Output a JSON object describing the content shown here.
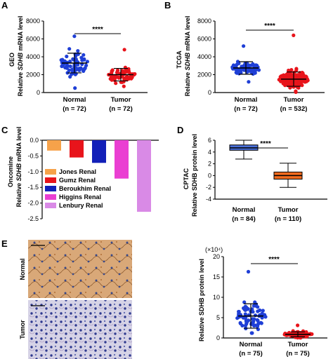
{
  "panels": {
    "a": {
      "letter": "A",
      "dataset": "GEO",
      "ylabel_prefix": "Relative ",
      "ylabel_gene": "SDHB",
      "ylabel_suffix": " mRNA level",
      "groups": [
        {
          "name": "Normal",
          "n": "(n = 72)"
        },
        {
          "name": "Tumor",
          "n": "(n = 72)"
        }
      ],
      "significance": "****"
    },
    "b": {
      "letter": "B",
      "dataset": "TCGA",
      "ylabel_prefix": "Relative ",
      "ylabel_gene": "SDHB",
      "ylabel_suffix": " mRNA level",
      "groups": [
        {
          "name": "Normal",
          "n": "(n = 72)"
        },
        {
          "name": "Tumor",
          "n": "(n = 532)"
        }
      ],
      "significance": "****"
    },
    "c": {
      "letter": "C",
      "dataset": "Oncomine",
      "ylabel_prefix": "Relative ",
      "ylabel_gene": "SDHB",
      "ylabel_suffix": " mRNA level"
    },
    "d": {
      "letter": "D",
      "dataset": "CPTAC",
      "ylabel": "Relative SDHB protein level",
      "groups": [
        {
          "name": "Normal",
          "n": "(n = 84)"
        },
        {
          "name": "Tumor",
          "n": "(n = 110)"
        }
      ],
      "significance": "****"
    },
    "e": {
      "letter": "E",
      "row_labels": [
        "Normal",
        "Tumor"
      ],
      "ylabel": "Relative SDHB protein level",
      "multiplier": "(×10⁴)",
      "groups": [
        {
          "name": "Normal",
          "n": "(n = 75)"
        },
        {
          "name": "Tumor",
          "n": "(n = 75)"
        }
      ],
      "significance": "****"
    }
  },
  "colors": {
    "normal": "#1f3fd6",
    "tumor": "#e8141b",
    "cptac_normal": "#4a6fd8",
    "cptac_tumor": "#f06a1e",
    "ihc_normal": "#c8915a",
    "ihc_tumor": "#8a93c4"
  },
  "chart_data": [
    {
      "panel": "A",
      "type": "scatter",
      "title": "GEO",
      "ylabel": "Relative SDHB mRNA level",
      "ylim": [
        0,
        8000
      ],
      "yticks": [
        0,
        2000,
        4000,
        6000,
        8000
      ],
      "categories": [
        "Normal",
        "Tumor"
      ],
      "series": [
        {
          "name": "Normal",
          "mean": 3300,
          "sd": 1100,
          "min": 500,
          "max": 6300,
          "n": 72
        },
        {
          "name": "Tumor",
          "mean": 2000,
          "sd": 700,
          "min": 700,
          "max": 4800,
          "n": 72
        }
      ]
    },
    {
      "panel": "B",
      "type": "scatter",
      "title": "TCGA",
      "ylabel": "Relative SDHB mRNA level",
      "ylim": [
        0,
        8000
      ],
      "yticks": [
        0,
        2000,
        4000,
        6000,
        8000
      ],
      "categories": [
        "Normal",
        "Tumor"
      ],
      "series": [
        {
          "name": "Normal",
          "mean": 2750,
          "sd": 700,
          "min": 1200,
          "max": 5200,
          "n": 72
        },
        {
          "name": "Tumor",
          "mean": 1500,
          "sd": 800,
          "min": 50,
          "max": 6400,
          "n": 532
        }
      ]
    },
    {
      "panel": "C",
      "type": "bar",
      "title": "Oncomine",
      "ylabel": "Relative SDHB mRNA level",
      "ylim": [
        -2.5,
        0
      ],
      "yticks": [
        0.0,
        -0.5,
        -1.0,
        -1.5,
        -2.0,
        -2.5
      ],
      "categories": [
        "Jones Renal",
        "Gumz Renal",
        "Beroukhim Renal",
        "Higgins Renal",
        "Lenbury Renal"
      ],
      "values": [
        -0.33,
        -0.55,
        -0.72,
        -1.22,
        -2.28
      ],
      "colors": [
        "#f6a24a",
        "#e8141b",
        "#1220b8",
        "#ea3fd2",
        "#d98ae6"
      ],
      "legend": "bottom-left"
    },
    {
      "panel": "D",
      "type": "box",
      "title": "CPTAC",
      "ylabel": "Relative SDHB protein level",
      "ylim": [
        -4,
        6
      ],
      "yticks": [
        -4,
        -2,
        0,
        2,
        4,
        6
      ],
      "categories": [
        "Normal",
        "Tumor"
      ],
      "series": [
        {
          "name": "Normal",
          "min": 2.8,
          "q1": 4.3,
          "median": 4.7,
          "q3": 5.2,
          "max": 6.0
        },
        {
          "name": "Tumor",
          "min": -2.0,
          "q1": -0.6,
          "median": 0.0,
          "q3": 0.6,
          "max": 2.1
        }
      ]
    },
    {
      "panel": "E",
      "type": "scatter",
      "ylabel": "Relative SDHB protein level",
      "ylim": [
        0,
        20
      ],
      "yticks": [
        0,
        5,
        10,
        15,
        20
      ],
      "categories": [
        "Normal",
        "Tumor"
      ],
      "series": [
        {
          "name": "Normal",
          "mean": 5.4,
          "sd": 3.0,
          "min": 1.2,
          "max": 16.3,
          "n": 75
        },
        {
          "name": "Tumor",
          "mean": 0.9,
          "sd": 0.6,
          "min": 0.05,
          "max": 3.1,
          "n": 75
        }
      ]
    }
  ]
}
